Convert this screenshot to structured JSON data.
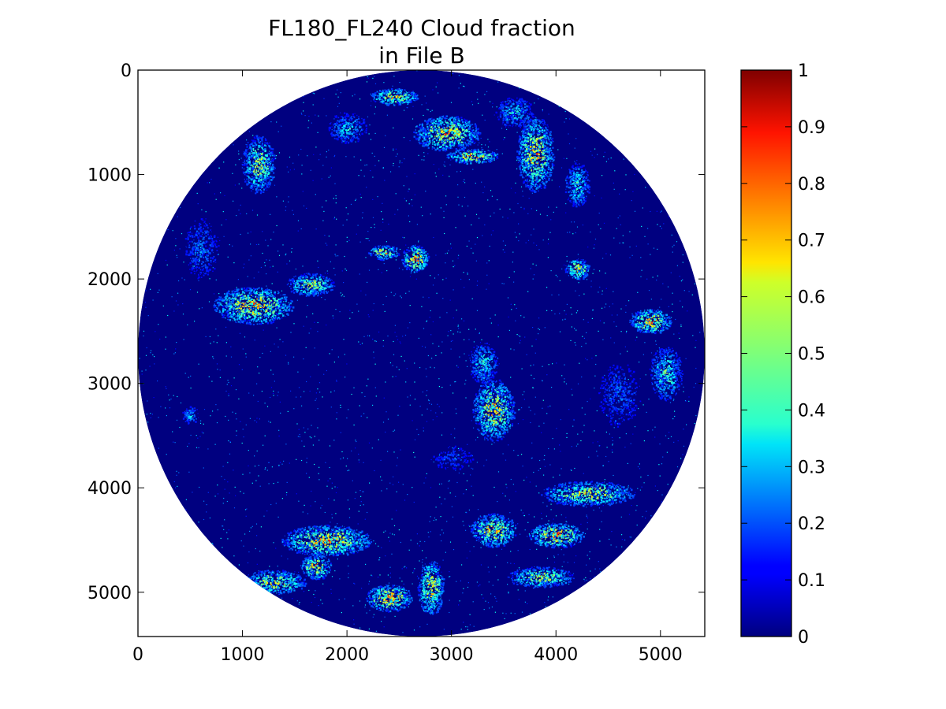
{
  "chart_data": {
    "type": "heatmap",
    "title": "FL180_FL240 Cloud fraction",
    "subtitle": "in File B",
    "xlabel": "",
    "ylabel": "",
    "xlim": [
      0,
      5424
    ],
    "ylim": [
      5424,
      0
    ],
    "x_ticks": [
      0,
      1000,
      2000,
      3000,
      4000,
      5000
    ],
    "y_ticks": [
      0,
      1000,
      2000,
      3000,
      4000,
      5000
    ],
    "x_tick_labels": [
      "0",
      "1000",
      "2000",
      "3000",
      "4000",
      "5000"
    ],
    "y_tick_labels": [
      "0",
      "1000",
      "2000",
      "3000",
      "4000",
      "5000"
    ],
    "colormap": "jet",
    "colorbar": {
      "range": [
        0,
        1
      ],
      "ticks": [
        0,
        0.1,
        0.2,
        0.3,
        0.4,
        0.5,
        0.6,
        0.7,
        0.8,
        0.9,
        1
      ],
      "tick_labels": [
        "0",
        "0.1",
        "0.2",
        "0.3",
        "0.4",
        "0.5",
        "0.6",
        "0.7",
        "0.8",
        "0.9",
        "1"
      ]
    },
    "disk": {
      "center": [
        2712,
        2712
      ],
      "radius": 2712,
      "background_value": 0
    },
    "cloud_features": [
      {
        "x": 2450,
        "y": 250,
        "rx": 230,
        "ry": 80,
        "peak": 0.95
      },
      {
        "x": 2950,
        "y": 600,
        "rx": 320,
        "ry": 170,
        "peak": 0.9
      },
      {
        "x": 3200,
        "y": 820,
        "rx": 250,
        "ry": 70,
        "peak": 1.0
      },
      {
        "x": 3800,
        "y": 800,
        "rx": 180,
        "ry": 360,
        "peak": 0.9
      },
      {
        "x": 4200,
        "y": 1100,
        "rx": 120,
        "ry": 220,
        "peak": 0.6
      },
      {
        "x": 3600,
        "y": 400,
        "rx": 180,
        "ry": 150,
        "peak": 0.55
      },
      {
        "x": 1150,
        "y": 900,
        "rx": 160,
        "ry": 280,
        "peak": 0.8
      },
      {
        "x": 2000,
        "y": 550,
        "rx": 200,
        "ry": 150,
        "peak": 0.5
      },
      {
        "x": 2650,
        "y": 1800,
        "rx": 130,
        "ry": 130,
        "peak": 1.0
      },
      {
        "x": 2350,
        "y": 1740,
        "rx": 150,
        "ry": 70,
        "peak": 0.9
      },
      {
        "x": 1100,
        "y": 2250,
        "rx": 380,
        "ry": 180,
        "peak": 0.95
      },
      {
        "x": 1650,
        "y": 2050,
        "rx": 230,
        "ry": 110,
        "peak": 0.8
      },
      {
        "x": 4200,
        "y": 1900,
        "rx": 120,
        "ry": 100,
        "peak": 0.9
      },
      {
        "x": 4900,
        "y": 2400,
        "rx": 200,
        "ry": 120,
        "peak": 0.95
      },
      {
        "x": 5050,
        "y": 2900,
        "rx": 160,
        "ry": 260,
        "peak": 0.65
      },
      {
        "x": 3400,
        "y": 3250,
        "rx": 200,
        "ry": 300,
        "peak": 0.9
      },
      {
        "x": 3300,
        "y": 2800,
        "rx": 140,
        "ry": 200,
        "peak": 0.6
      },
      {
        "x": 4300,
        "y": 4050,
        "rx": 450,
        "ry": 120,
        "peak": 0.85
      },
      {
        "x": 3400,
        "y": 4400,
        "rx": 220,
        "ry": 160,
        "peak": 0.95
      },
      {
        "x": 4000,
        "y": 4450,
        "rx": 260,
        "ry": 120,
        "peak": 1.0
      },
      {
        "x": 3850,
        "y": 4850,
        "rx": 320,
        "ry": 100,
        "peak": 0.8
      },
      {
        "x": 1800,
        "y": 4500,
        "rx": 430,
        "ry": 150,
        "peak": 0.95
      },
      {
        "x": 1700,
        "y": 4750,
        "rx": 150,
        "ry": 120,
        "peak": 0.9
      },
      {
        "x": 1300,
        "y": 4900,
        "rx": 300,
        "ry": 120,
        "peak": 0.85
      },
      {
        "x": 2400,
        "y": 5050,
        "rx": 220,
        "ry": 130,
        "peak": 1.0
      },
      {
        "x": 2800,
        "y": 4950,
        "rx": 130,
        "ry": 260,
        "peak": 0.9
      },
      {
        "x": 500,
        "y": 3300,
        "rx": 90,
        "ry": 90,
        "peak": 0.45
      },
      {
        "x": 600,
        "y": 1700,
        "rx": 200,
        "ry": 350,
        "peak": 0.35
      },
      {
        "x": 4600,
        "y": 3100,
        "rx": 260,
        "ry": 400,
        "peak": 0.3
      },
      {
        "x": 3000,
        "y": 3700,
        "rx": 300,
        "ry": 200,
        "peak": 0.25
      }
    ]
  }
}
